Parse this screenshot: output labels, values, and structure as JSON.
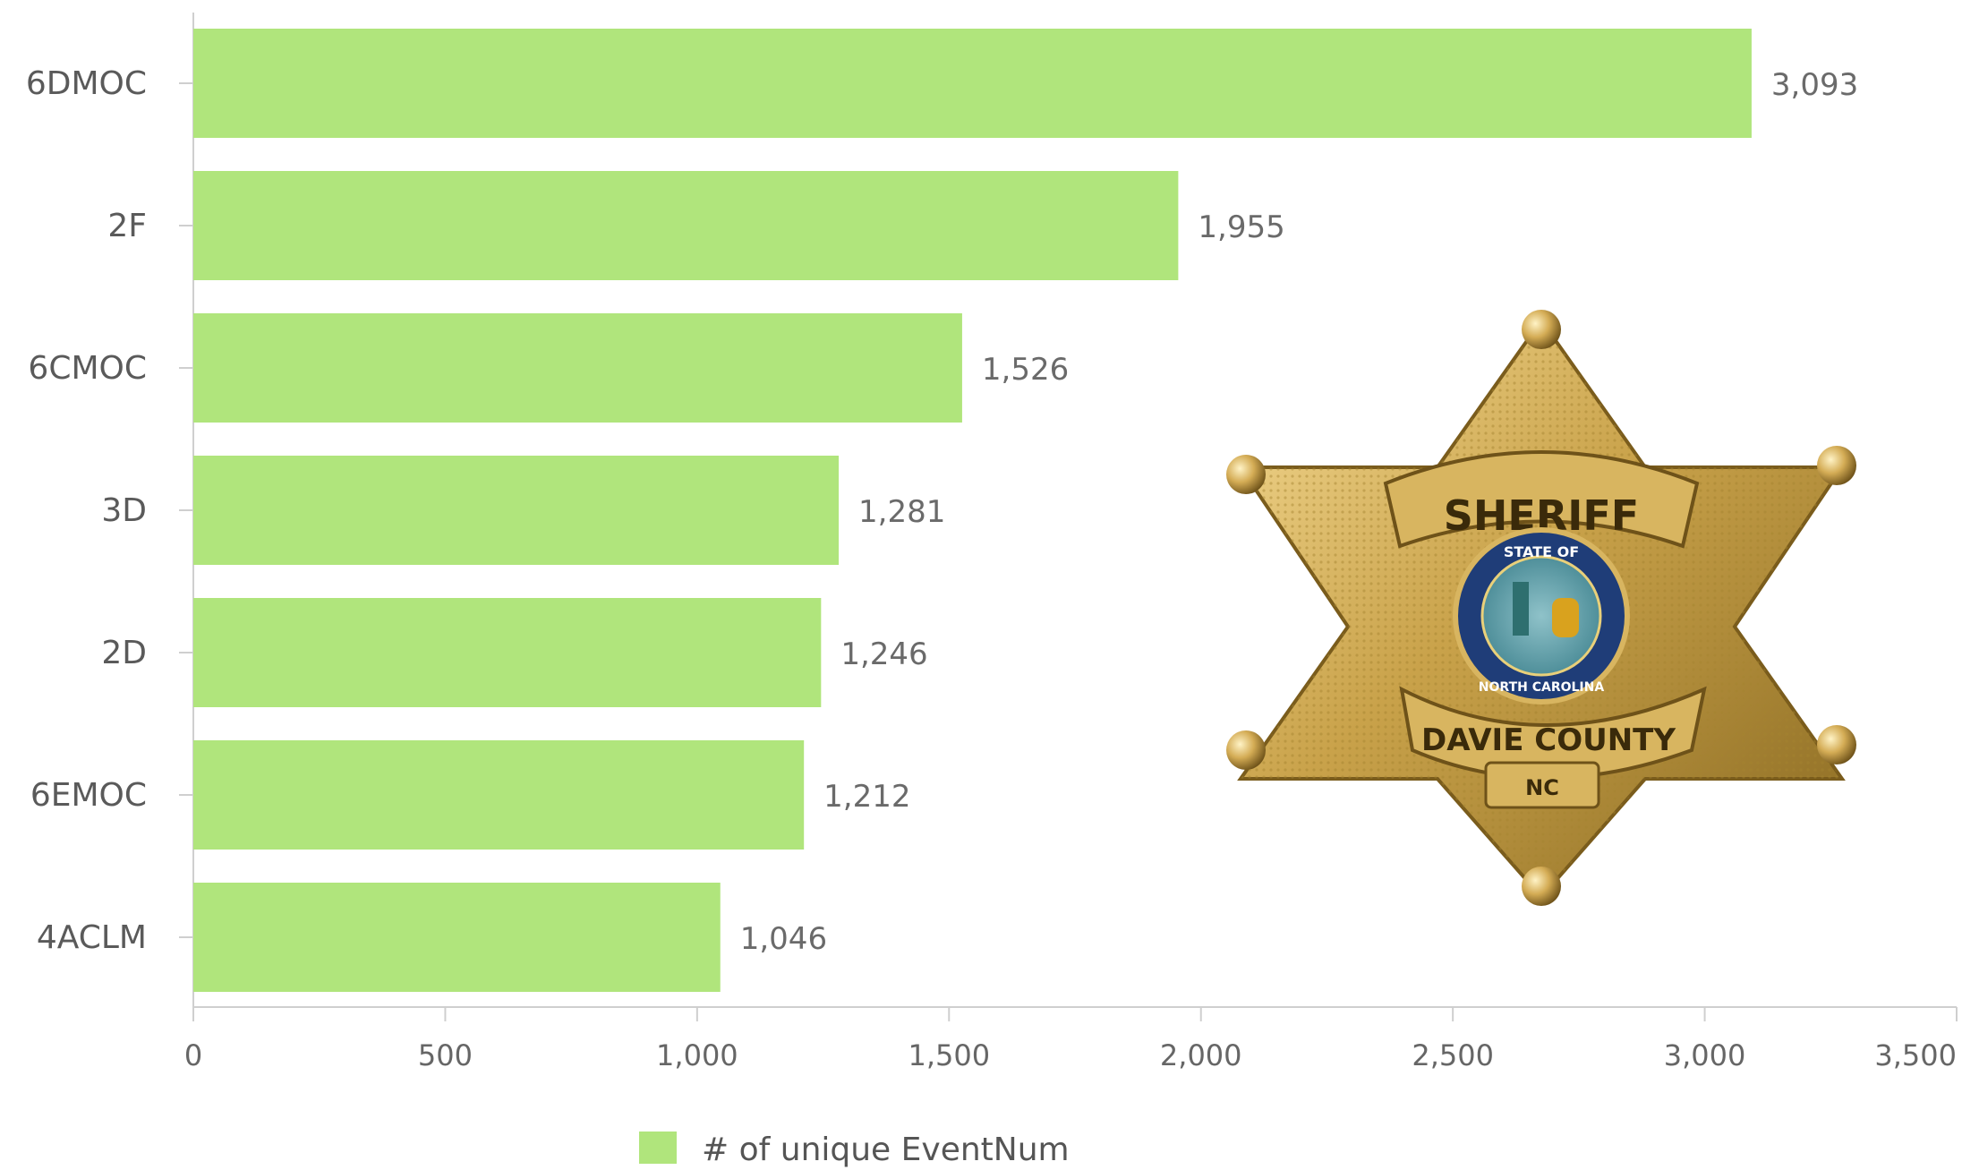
{
  "chart_data": {
    "type": "bar",
    "orientation": "horizontal",
    "categories": [
      "6DMOC",
      "2F",
      "6CMOC",
      "3D",
      "2D",
      "6EMOC",
      "4ACLM"
    ],
    "series": [
      {
        "name": "# of unique EventNum",
        "values": [
          3093,
          1955,
          1526,
          1281,
          1246,
          1212,
          1046
        ]
      }
    ],
    "value_labels": [
      "3,093",
      "1,955",
      "1,526",
      "1,281",
      "1,246",
      "1,212",
      "1,046"
    ],
    "xlim": [
      0,
      3500
    ],
    "xticks": [
      0,
      500,
      1000,
      1500,
      2000,
      2500,
      3000,
      3500
    ],
    "xtick_labels": [
      "0",
      "500",
      "1,000",
      "1,500",
      "2,000",
      "2,500",
      "3,000",
      "3,500"
    ],
    "grid": false,
    "legend_position": "bottom",
    "colors": {
      "bar": "#b0e57c",
      "axis": "#cfcfcf"
    }
  },
  "badge": {
    "top_text": "SHERIFF",
    "seal_top": "STATE OF",
    "seal_bottom": "NORTH CAROLINA",
    "banner_text": "DAVIE COUNTY",
    "plate_text": "NC",
    "colors": {
      "gold": "#c9a24a",
      "gold_dark": "#8a6a22",
      "gold_light": "#f1d48a",
      "seal_blue": "#1f3d78"
    }
  }
}
